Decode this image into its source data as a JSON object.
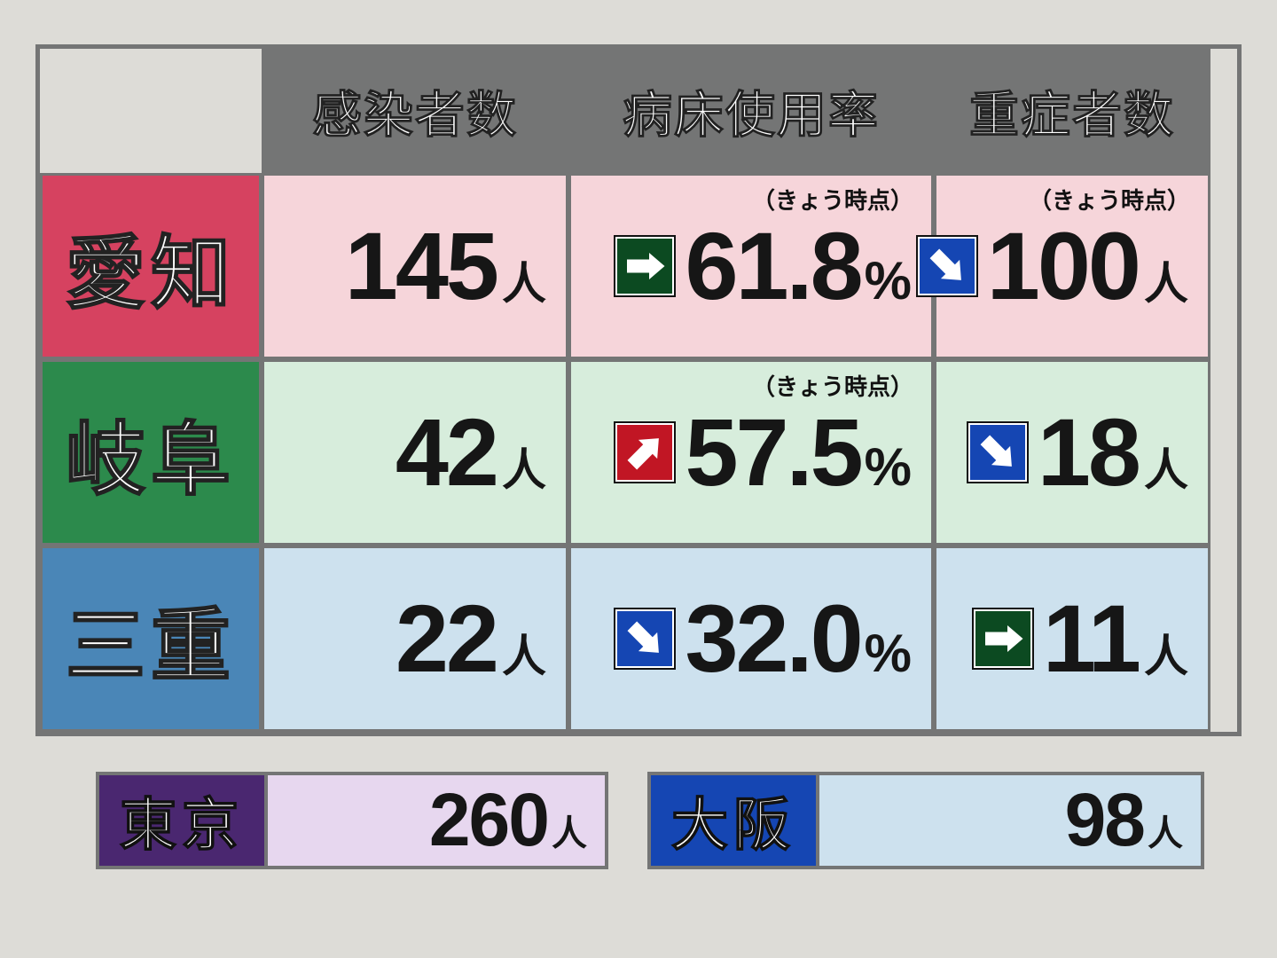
{
  "type": "table",
  "background_color": "#dddcd7",
  "border_color": "#747575",
  "text_color": "#161616",
  "header_bg": "#747575",
  "header_text_color": "#ffffff",
  "columns": [
    {
      "key": "pref",
      "label": ""
    },
    {
      "key": "cases",
      "label": "感染者数"
    },
    {
      "key": "beds",
      "label": "病床使用率"
    },
    {
      "key": "severe",
      "label": "重症者数"
    }
  ],
  "note_text": "（きょう時点）",
  "units": {
    "person": "人",
    "percent": "%"
  },
  "arrow_colors": {
    "flat": "#0c4a21",
    "up": "#c11624",
    "down": "#1546b3"
  },
  "arrow_fg": "#ffffff",
  "rows": [
    {
      "pref": "愛知",
      "pref_bg": "#d64260",
      "row_bg": "#f6d5da",
      "cases": {
        "value": "145",
        "unit": "person"
      },
      "beds": {
        "arrow": "flat",
        "value": "61.8",
        "unit": "percent",
        "note": true
      },
      "severe": {
        "arrow": "down",
        "value": "100",
        "unit": "person",
        "note": true
      }
    },
    {
      "pref": "岐阜",
      "pref_bg": "#2c8a4c",
      "row_bg": "#d7eddc",
      "cases": {
        "value": "42",
        "unit": "person"
      },
      "beds": {
        "arrow": "up",
        "value": "57.5",
        "unit": "percent",
        "note": true
      },
      "severe": {
        "arrow": "down",
        "value": "18",
        "unit": "person"
      }
    },
    {
      "pref": "三重",
      "pref_bg": "#4a86b7",
      "row_bg": "#cde1ee",
      "cases": {
        "value": "22",
        "unit": "person"
      },
      "beds": {
        "arrow": "down",
        "value": "32.0",
        "unit": "percent"
      },
      "severe": {
        "arrow": "flat",
        "value": "11",
        "unit": "person"
      }
    }
  ],
  "bottom": [
    {
      "label": "東京",
      "label_bg": "#4a2770",
      "value_bg": "#e7d7ef",
      "value": "260",
      "unit": "person",
      "label_width": 190,
      "value_width": 380
    },
    {
      "label": "大阪",
      "label_bg": "#1546b3",
      "value_bg": "#cde1ee",
      "value": "98",
      "unit": "person",
      "label_width": 190,
      "value_width": 430
    }
  ]
}
